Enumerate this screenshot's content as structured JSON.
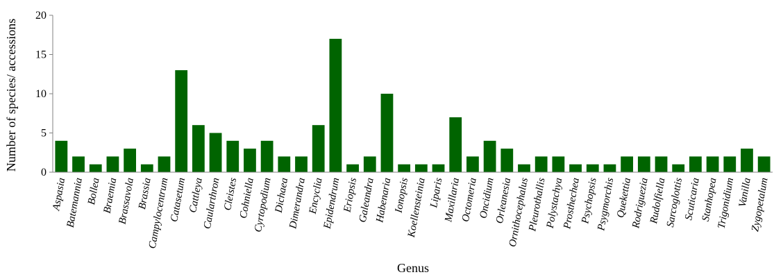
{
  "chart_data": {
    "type": "bar",
    "title": "",
    "xlabel": "Genus",
    "ylabel": "Number of species/ accessions",
    "ylim": [
      0,
      20
    ],
    "yticks": [
      0,
      5,
      10,
      15,
      20
    ],
    "grid": false,
    "bar_color": "#006400",
    "categories": [
      "Aspasia",
      "Batemannia",
      "Bollea",
      "Braemia",
      "Brassavola",
      "Brassia",
      "Campylocentrum",
      "Catasetum",
      "Cattleya",
      "Caularthron",
      "Cleistes",
      "Cohniella",
      "Cyrtopodium",
      "Dichaea",
      "Dimerandra",
      "Encyclia",
      "Epidendrum",
      "Eriopsis",
      "Galeandra",
      "Habenaria",
      "Ionopsis",
      "Koellensteinia",
      "Liparis",
      "Maxillaria",
      "Octomeria",
      "Oncidium",
      "Orleanesia",
      "Ornithocephalus",
      "Pleurothallis",
      "Polystachya",
      "Prosthechea",
      "Psychopsis",
      "Psygmorchis",
      "Quekettia",
      "Rodriguezia",
      "Rudolfiella",
      "Sarcoglottis",
      "Scuticaria",
      "Stanhopea",
      "Trigonidium",
      "Vanilla",
      "Zygopetalum"
    ],
    "values": [
      4,
      2,
      1,
      2,
      3,
      1,
      2,
      13,
      6,
      5,
      4,
      3,
      4,
      2,
      2,
      6,
      17,
      1,
      2,
      10,
      1,
      1,
      1,
      7,
      2,
      4,
      3,
      1,
      2,
      2,
      1,
      1,
      1,
      2,
      2,
      2,
      1,
      2,
      2,
      2,
      3,
      2
    ]
  }
}
